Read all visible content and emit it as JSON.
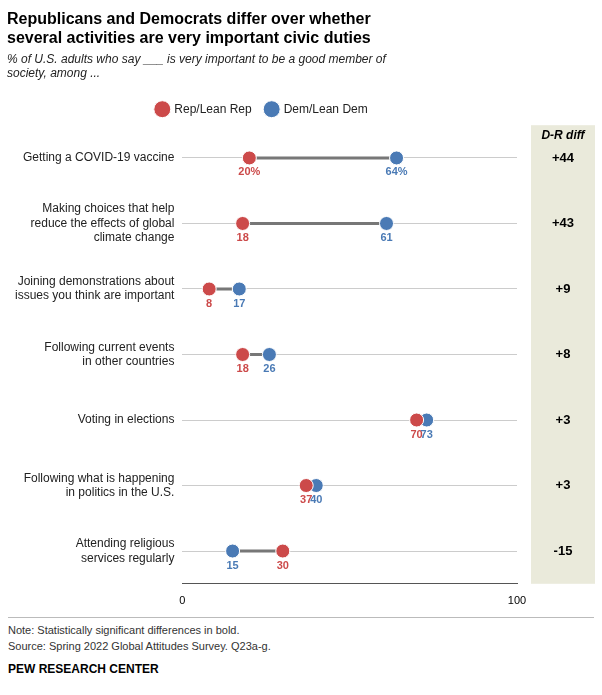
{
  "chart_data": {
    "type": "dumbbell",
    "title": [
      "Republicans and Democrats differ over whether",
      "several activities are very important civic duties"
    ],
    "subtitle": [
      "% of U.S. adults who say ___ is very important to be a good member of",
      "society, among ..."
    ],
    "orientation": "horizontal",
    "categories": [
      "Getting a COVID-19 vaccine",
      "Making choices that help\nreduce the effects of global\nclimate change",
      "Joining demonstrations about\nissues you think are important",
      "Following current events\nin other countries",
      "Voting in elections",
      "Following what is happening\nin politics in the U.S.",
      "Attending religious\nservices regularly"
    ],
    "series": [
      {
        "name": "Rep/Lean Rep",
        "color": "#cc4a4a",
        "marker": "circle",
        "values": [
          20,
          18,
          8,
          18,
          70,
          37,
          30
        ],
        "value_labels": [
          "20%",
          "18",
          "8",
          "18",
          "70",
          "37",
          "30"
        ]
      },
      {
        "name": "Dem/Lean Dem",
        "color": "#4a7ab5",
        "marker": "circle",
        "values": [
          64,
          61,
          17,
          26,
          73,
          40,
          15
        ],
        "value_labels": [
          "64%",
          "61",
          "17",
          "26",
          "73",
          "40",
          "15"
        ]
      }
    ],
    "data_labels": true,
    "xlim": [
      0,
      100
    ],
    "xticks": [
      0,
      100
    ],
    "grid": true,
    "legend": "top",
    "diff": {
      "title": "D-R diff",
      "values": [
        44,
        43,
        9,
        8,
        3,
        3,
        -15
      ],
      "value_labels": [
        "+44",
        "+43",
        "+9",
        "+8",
        "+3",
        "+3",
        "-15"
      ]
    },
    "note": "Note: Statistically significant differences in bold.",
    "source": "Source: Spring 2022 Global Attitudes Survey. Q23a-g.",
    "footer": "PEW RESEARCH CENTER"
  }
}
